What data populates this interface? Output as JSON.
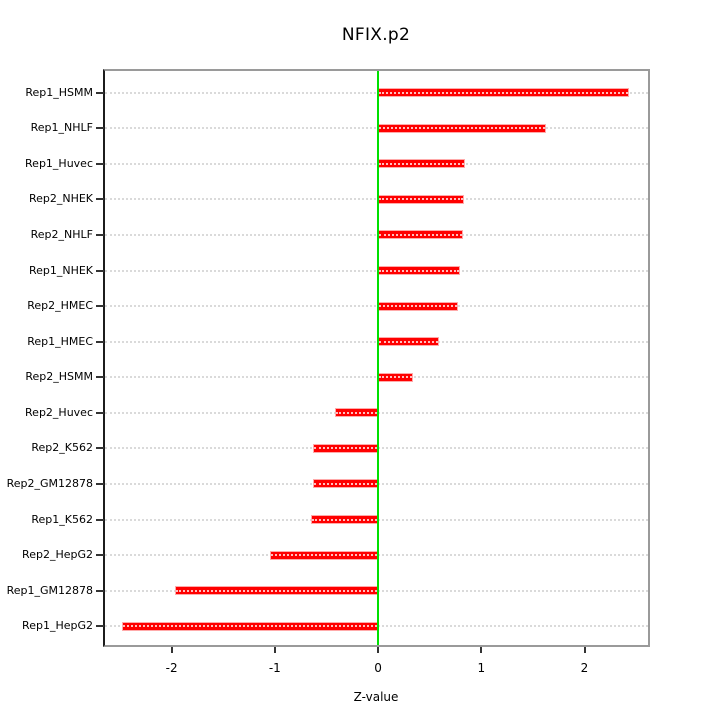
{
  "chart_data": {
    "type": "bar",
    "orientation": "horizontal",
    "title": "NFIX.p2",
    "xlabel": "Z-value",
    "ylabel": "",
    "categories": [
      "Rep1_HSMM",
      "Rep1_NHLF",
      "Rep1_Huvec",
      "Rep2_NHEK",
      "Rep2_NHLF",
      "Rep1_NHEK",
      "Rep2_HMEC",
      "Rep1_HMEC",
      "Rep2_HSMM",
      "Rep2_Huvec",
      "Rep2_K562",
      "Rep2_GM12878",
      "Rep1_K562",
      "Rep2_HepG2",
      "Rep1_GM12878",
      "Rep1_HepG2"
    ],
    "values": [
      2.43,
      1.63,
      0.84,
      0.83,
      0.82,
      0.79,
      0.77,
      0.59,
      0.34,
      -0.42,
      -0.63,
      -0.63,
      -0.65,
      -1.05,
      -1.97,
      -2.48
    ],
    "x_ticks": [
      -2,
      -1,
      0,
      1,
      2
    ],
    "x_tick_labels": [
      "-2",
      "-1",
      "0",
      "1",
      "2"
    ],
    "xlim": [
      -2.65,
      2.615
    ],
    "grid": "dotted-horizontal",
    "legend": null,
    "zero_line_value": 0,
    "colors": {
      "bar": "#ff0000",
      "bar_border": "#ffaaaa",
      "zero_line": "#00e000",
      "grid": "#dadada",
      "box": "#9a9a9a",
      "axis": "#333333",
      "text": "#000000"
    }
  }
}
